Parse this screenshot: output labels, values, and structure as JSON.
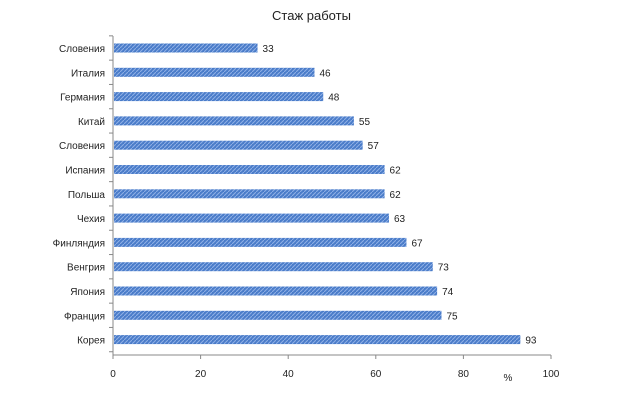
{
  "chart_data": {
    "type": "bar",
    "orientation": "horizontal",
    "title": "Стаж работы",
    "xlabel": "%",
    "ylabel": "",
    "xlim": [
      0,
      100
    ],
    "x_ticks": [
      0,
      20,
      40,
      60,
      80,
      100
    ],
    "categories": [
      "Словения",
      "Италия",
      "Германия",
      "Китай",
      "Словения",
      "Испания",
      "Польша",
      "Чехия",
      "Финляндия",
      "Венгрия",
      "Япония",
      "Франция",
      "Корея"
    ],
    "values": [
      33,
      46,
      48,
      55,
      57,
      62,
      62,
      63,
      67,
      73,
      74,
      75,
      93
    ],
    "data_labels": [
      "33",
      "46",
      "48",
      "55",
      "57",
      "62",
      "62",
      "63",
      "67",
      "73",
      "74",
      "75",
      "93"
    ],
    "bar_color": "#4a7cc9",
    "grid": false,
    "legend": "none"
  }
}
